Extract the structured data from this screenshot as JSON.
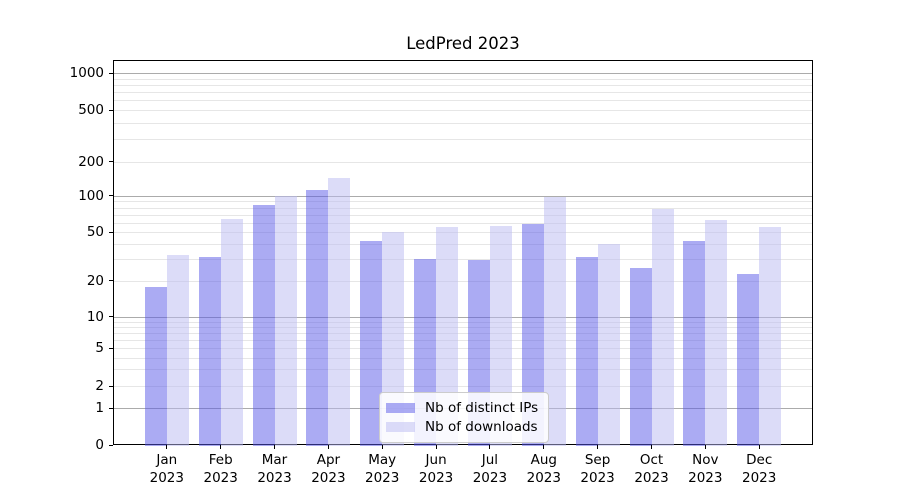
{
  "title": "LedPred 2023",
  "chart_data": {
    "type": "bar",
    "title": "LedPred 2023",
    "xlabel": "",
    "ylabel": "",
    "categories": [
      "Jan",
      "Feb",
      "Mar",
      "Apr",
      "May",
      "Jun",
      "Jul",
      "Aug",
      "Sep",
      "Oct",
      "Nov",
      "Dec"
    ],
    "year": "2023",
    "series": [
      {
        "name": "Nb of distinct IPs",
        "color": "rgba(88,88,232,0.5)",
        "color_over_white": "#abacf4",
        "values": [
          18,
          32,
          86,
          115,
          43,
          31,
          30,
          60,
          32,
          26,
          43,
          23
        ]
      },
      {
        "name": "Nb of downloads",
        "color": "rgba(185,185,242,0.5)",
        "color_over_white": "#dcdcf8",
        "values": [
          33,
          65,
          102,
          147,
          51,
          56,
          57,
          99,
          41,
          79,
          64,
          56
        ]
      }
    ],
    "yticks": [
      0,
      1,
      2,
      5,
      10,
      20,
      50,
      100,
      200,
      500,
      1000
    ],
    "ylim": [
      0,
      1300
    ],
    "yscale": "symlog-like",
    "grid": "both",
    "grid_major_color": "#ababab",
    "grid_minor_color": "#e6e6e6",
    "legend_position": "lower-center-inside",
    "scale_anchors": [
      [
        0,
        1.0
      ],
      [
        1,
        0.9048
      ],
      [
        2,
        0.8468
      ],
      [
        5,
        0.7488
      ],
      [
        10,
        0.6667
      ],
      [
        20,
        0.5732
      ],
      [
        50,
        0.4475
      ],
      [
        100,
        0.3525
      ],
      [
        200,
        0.2642
      ],
      [
        500,
        0.1299
      ],
      [
        1000,
        0.0345
      ]
    ]
  }
}
